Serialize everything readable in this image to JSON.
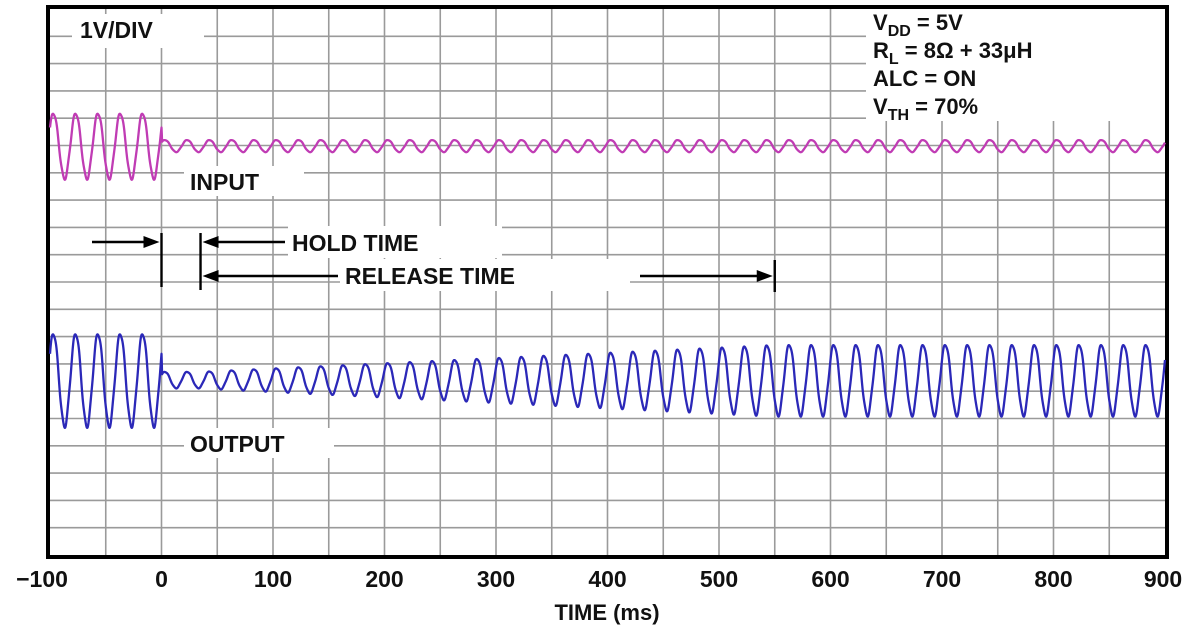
{
  "chart_data": {
    "type": "line",
    "title": "",
    "xlabel": "TIME (ms)",
    "ylabel": "",
    "xlim": [
      -100,
      900
    ],
    "x_ticks": [
      "−100",
      "0",
      "100",
      "200",
      "300",
      "400",
      "500",
      "600",
      "700",
      "800",
      "900"
    ],
    "grid": true,
    "scale_label": "1V/DIV",
    "conditions": [
      {
        "main": "V",
        "sub": "DD",
        "rest": " = 5V"
      },
      {
        "main": "R",
        "sub": "L",
        "rest": " = 8Ω + 33μH"
      },
      {
        "main": "ALC = ON",
        "sub": "",
        "rest": ""
      },
      {
        "main": "V",
        "sub": "TH",
        "rest": " = 70%"
      }
    ],
    "annotations": {
      "hold_time": "HOLD TIME",
      "release_time": "RELEASE TIME",
      "hold_time_end_ms": 35,
      "release_time_end_ms": 550
    },
    "series": [
      {
        "name": "INPUT",
        "color": "#c03cb4",
        "period_ms": 20,
        "amplitude_div": [
          {
            "t": -100,
            "a": 1.2
          },
          {
            "t": 0,
            "a": 1.2
          },
          {
            "t": 0.5,
            "a": 0.22
          },
          {
            "t": 900,
            "a": 0.22
          }
        ]
      },
      {
        "name": "OUTPUT",
        "color": "#2b28b8",
        "period_ms": 20,
        "amplitude_div": [
          {
            "t": -100,
            "a": 1.7
          },
          {
            "t": 0,
            "a": 1.7
          },
          {
            "t": 0.5,
            "a": 0.3
          },
          {
            "t": 35,
            "a": 0.3
          },
          {
            "t": 550,
            "a": 1.3
          },
          {
            "t": 900,
            "a": 1.3
          }
        ]
      }
    ]
  }
}
